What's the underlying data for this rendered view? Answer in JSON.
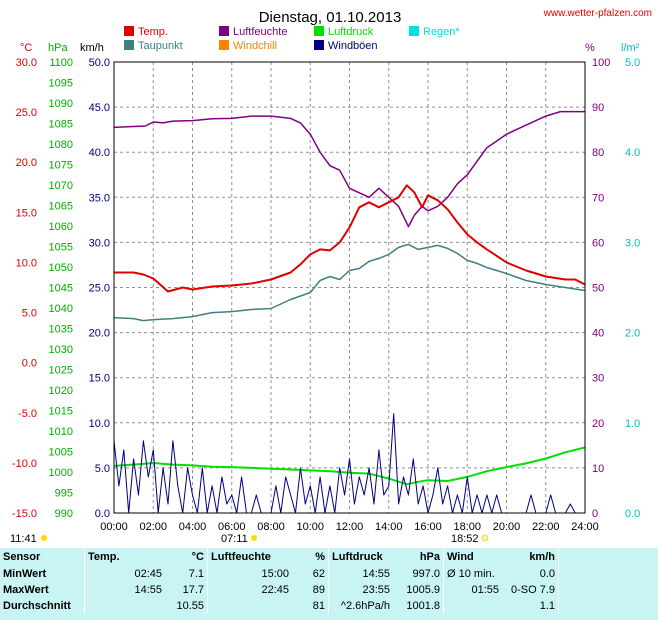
{
  "chart_data": {
    "type": "line",
    "title": "Dienstag, 01.10.2013",
    "source": "www.wetter-pfalzen.com",
    "x_range_hours": [
      0,
      24
    ],
    "x_ticks": [
      "00:00",
      "02:00",
      "04:00",
      "06:00",
      "08:00",
      "10:00",
      "12:00",
      "14:00",
      "16:00",
      "18:00",
      "20:00",
      "22:00",
      "24:00"
    ],
    "sunrise": "07:11",
    "sunset": "18:52",
    "daylength": "11:41",
    "axes": {
      "temp": {
        "unit": "°C",
        "min": -15,
        "max": 30,
        "ticks": [
          "30.0",
          "25.0",
          "20.0",
          "15.0",
          "10.0",
          "5.0",
          "0.0",
          "-5.0",
          "-10.0",
          "-15.0"
        ],
        "color": "#e00000"
      },
      "pressure": {
        "unit": "hPa",
        "min": 990,
        "max": 1100,
        "ticks": [
          "1100",
          "1095",
          "1090",
          "1085",
          "1080",
          "1075",
          "1070",
          "1065",
          "1060",
          "1055",
          "1050",
          "1045",
          "1040",
          "1035",
          "1030",
          "1025",
          "1020",
          "1015",
          "1010",
          "1005",
          "1000",
          "995",
          "990"
        ],
        "color": "#00b000"
      },
      "wind": {
        "unit": "km/h",
        "min": 0,
        "max": 50,
        "ticks": [
          "50.0",
          "45.0",
          "40.0",
          "35.0",
          "30.0",
          "25.0",
          "20.0",
          "15.0",
          "10.0",
          "5.0",
          "0.0"
        ],
        "color": "#000080"
      },
      "humidity": {
        "unit": "%",
        "min": 0,
        "max": 100,
        "ticks": [
          "100",
          "90",
          "80",
          "70",
          "60",
          "50",
          "40",
          "30",
          "20",
          "10",
          "0"
        ],
        "color": "#800080"
      },
      "rain": {
        "unit": "l/m²",
        "min": 0,
        "max": 5,
        "ticks": [
          "5.0",
          "4.0",
          "3.0",
          "2.0",
          "1.0",
          "0.0"
        ],
        "color": "#00c0c0"
      }
    },
    "legend": [
      {
        "name": "Temp.",
        "color": "#e00000"
      },
      {
        "name": "Luftfeuchte",
        "color": "#800080"
      },
      {
        "name": "Luftdruck",
        "color": "#00e000"
      },
      {
        "name": "Regen*",
        "color": "#00e0e0"
      },
      {
        "name": "Taupunkt",
        "color": "#408080"
      },
      {
        "name": "Windchill",
        "color": "#ff8000"
      },
      {
        "name": "Windböen",
        "color": "#000080"
      }
    ],
    "series": [
      {
        "name": "Temp.",
        "axis": "temp",
        "color": "#e00000",
        "points": [
          [
            0,
            9
          ],
          [
            1,
            9
          ],
          [
            1.5,
            8.8
          ],
          [
            2,
            8.4
          ],
          [
            2.75,
            7.1
          ],
          [
            3.5,
            7.5
          ],
          [
            4,
            7.3
          ],
          [
            5,
            7.6
          ],
          [
            6,
            7.7
          ],
          [
            7,
            7.9
          ],
          [
            8,
            8.3
          ],
          [
            9,
            9
          ],
          [
            9.5,
            9.8
          ],
          [
            10,
            10.8
          ],
          [
            10.5,
            11.3
          ],
          [
            11,
            11.2
          ],
          [
            11.5,
            12
          ],
          [
            12,
            13.5
          ],
          [
            12.5,
            15.5
          ],
          [
            13,
            16
          ],
          [
            13.5,
            15.5
          ],
          [
            14,
            16
          ],
          [
            14.5,
            16.5
          ],
          [
            14.92,
            17.7
          ],
          [
            15.3,
            17
          ],
          [
            15.7,
            15.5
          ],
          [
            16,
            16.7
          ],
          [
            16.5,
            16.2
          ],
          [
            17,
            15.3
          ],
          [
            17.5,
            14
          ],
          [
            18,
            12.8
          ],
          [
            18.5,
            12
          ],
          [
            19,
            11.3
          ],
          [
            20,
            10
          ],
          [
            21,
            9.2
          ],
          [
            22,
            8.6
          ],
          [
            23,
            8.3
          ],
          [
            23.5,
            8.3
          ],
          [
            24,
            7.8
          ]
        ]
      },
      {
        "name": "Taupunkt",
        "axis": "temp",
        "color": "#408080",
        "points": [
          [
            0,
            4.5
          ],
          [
            1,
            4.4
          ],
          [
            1.5,
            4.2
          ],
          [
            2,
            4.3
          ],
          [
            3,
            4.4
          ],
          [
            4,
            4.6
          ],
          [
            5,
            5.0
          ],
          [
            6,
            5.1
          ],
          [
            7,
            5.3
          ],
          [
            8,
            5.4
          ],
          [
            9,
            6.3
          ],
          [
            10,
            7.0
          ],
          [
            10.5,
            8.2
          ],
          [
            11,
            8.6
          ],
          [
            11.5,
            8.3
          ],
          [
            12,
            9.2
          ],
          [
            12.5,
            9.4
          ],
          [
            13,
            10.1
          ],
          [
            13.5,
            10.4
          ],
          [
            14,
            10.8
          ],
          [
            14.5,
            11.5
          ],
          [
            15,
            11.8
          ],
          [
            15.5,
            11.3
          ],
          [
            16,
            11.5
          ],
          [
            16.5,
            11.7
          ],
          [
            17,
            11.4
          ],
          [
            17.5,
            10.9
          ],
          [
            18,
            10.2
          ],
          [
            18.5,
            9.9
          ],
          [
            19,
            9.5
          ],
          [
            20,
            8.9
          ],
          [
            21,
            8.2
          ],
          [
            22,
            7.8
          ],
          [
            23,
            7.5
          ],
          [
            24,
            7.2
          ]
        ]
      },
      {
        "name": "Luftfeuchte",
        "axis": "humidity",
        "color": "#800080",
        "points": [
          [
            0,
            85.5
          ],
          [
            1,
            85.7
          ],
          [
            1.6,
            85.8
          ],
          [
            2,
            86.7
          ],
          [
            2.5,
            86.5
          ],
          [
            3,
            86.9
          ],
          [
            4,
            87
          ],
          [
            5,
            87.4
          ],
          [
            6,
            87.5
          ],
          [
            7,
            88
          ],
          [
            8,
            88
          ],
          [
            9,
            87.5
          ],
          [
            9.5,
            86.5
          ],
          [
            10,
            84
          ],
          [
            10.5,
            80
          ],
          [
            11,
            77
          ],
          [
            11.5,
            76
          ],
          [
            12,
            72
          ],
          [
            12.5,
            71
          ],
          [
            13,
            70
          ],
          [
            13.5,
            72
          ],
          [
            14,
            70
          ],
          [
            14.5,
            68
          ],
          [
            15,
            63.5
          ],
          [
            15.3,
            66
          ],
          [
            15.7,
            68
          ],
          [
            16,
            67
          ],
          [
            16.5,
            68
          ],
          [
            17,
            70
          ],
          [
            17.5,
            73
          ],
          [
            18,
            75
          ],
          [
            18.5,
            78
          ],
          [
            19,
            81
          ],
          [
            20,
            84
          ],
          [
            21,
            86
          ],
          [
            22,
            88
          ],
          [
            22.75,
            89
          ],
          [
            23.5,
            89
          ],
          [
            24,
            89
          ]
        ]
      },
      {
        "name": "Luftdruck",
        "axis": "pressure",
        "color": "#00e000",
        "points": [
          [
            0,
            1001.5
          ],
          [
            1,
            1001.8
          ],
          [
            2,
            1002.2
          ],
          [
            3,
            1001.8
          ],
          [
            4,
            1001.6
          ],
          [
            5,
            1001.3
          ],
          [
            6,
            1001.2
          ],
          [
            7,
            1001.0
          ],
          [
            8,
            1000.8
          ],
          [
            9,
            1000.6
          ],
          [
            10,
            1000.4
          ],
          [
            11,
            1000.2
          ],
          [
            12,
            999.8
          ],
          [
            13,
            999.6
          ],
          [
            14,
            998.4
          ],
          [
            14.92,
            997.0
          ],
          [
            15.5,
            997.6
          ],
          [
            16,
            998.0
          ],
          [
            17,
            997.8
          ],
          [
            18,
            998.8
          ],
          [
            19,
            1000.2
          ],
          [
            20,
            1001.2
          ],
          [
            21,
            1002.1
          ],
          [
            22,
            1003.3
          ],
          [
            23,
            1004.8
          ],
          [
            23.92,
            1005.9
          ],
          [
            24,
            1005.9
          ]
        ]
      },
      {
        "name": "Windböen",
        "axis": "wind",
        "color": "#000080",
        "points": [
          [
            0,
            8
          ],
          [
            0.25,
            3
          ],
          [
            0.5,
            7
          ],
          [
            0.75,
            0
          ],
          [
            1,
            6
          ],
          [
            1.25,
            2
          ],
          [
            1.5,
            8
          ],
          [
            1.75,
            4
          ],
          [
            2,
            7
          ],
          [
            2.25,
            0
          ],
          [
            2.5,
            5
          ],
          [
            2.75,
            1
          ],
          [
            3,
            8
          ],
          [
            3.25,
            3
          ],
          [
            3.5,
            0
          ],
          [
            3.75,
            5
          ],
          [
            4,
            2
          ],
          [
            4.25,
            0
          ],
          [
            4.5,
            5
          ],
          [
            4.75,
            0
          ],
          [
            5,
            3
          ],
          [
            5.25,
            0
          ],
          [
            5.5,
            4
          ],
          [
            5.75,
            1
          ],
          [
            6,
            2
          ],
          [
            6.25,
            0
          ],
          [
            6.5,
            4
          ],
          [
            6.75,
            0
          ],
          [
            7,
            0
          ],
          [
            7.25,
            2
          ],
          [
            7.5,
            0
          ],
          [
            8,
            0
          ],
          [
            8.25,
            3
          ],
          [
            8.5,
            0
          ],
          [
            8.75,
            4
          ],
          [
            9,
            2
          ],
          [
            9.25,
            0
          ],
          [
            9.5,
            5
          ],
          [
            9.75,
            1
          ],
          [
            10,
            3
          ],
          [
            10.25,
            0
          ],
          [
            10.5,
            4
          ],
          [
            10.75,
            0
          ],
          [
            11,
            3
          ],
          [
            11.25,
            0
          ],
          [
            11.5,
            5
          ],
          [
            11.75,
            2
          ],
          [
            12,
            6
          ],
          [
            12.25,
            1
          ],
          [
            12.5,
            4
          ],
          [
            12.75,
            2
          ],
          [
            13,
            5
          ],
          [
            13.25,
            1
          ],
          [
            13.5,
            7
          ],
          [
            13.75,
            2
          ],
          [
            14,
            3
          ],
          [
            14.25,
            11
          ],
          [
            14.5,
            1
          ],
          [
            14.75,
            4
          ],
          [
            15,
            2
          ],
          [
            15.25,
            6
          ],
          [
            15.5,
            1
          ],
          [
            15.75,
            3
          ],
          [
            16,
            0
          ],
          [
            16.25,
            2
          ],
          [
            16.5,
            5
          ],
          [
            16.75,
            1
          ],
          [
            17,
            3
          ],
          [
            17.25,
            0
          ],
          [
            17.5,
            2
          ],
          [
            17.75,
            0
          ],
          [
            18,
            4
          ],
          [
            18.25,
            0
          ],
          [
            18.5,
            2
          ],
          [
            18.75,
            0
          ],
          [
            19,
            2
          ],
          [
            19.25,
            0
          ],
          [
            19.5,
            2
          ],
          [
            19.75,
            0
          ],
          [
            20,
            0
          ],
          [
            21,
            0
          ],
          [
            21.25,
            2
          ],
          [
            21.5,
            0
          ],
          [
            22,
            0
          ],
          [
            22.25,
            2
          ],
          [
            22.5,
            0
          ],
          [
            23,
            0
          ],
          [
            23.25,
            1
          ],
          [
            23.5,
            0
          ],
          [
            24,
            0
          ]
        ]
      }
    ]
  },
  "stats_table": {
    "headers": {
      "sensor": "Sensor",
      "temp": "Temp.",
      "temp_unit": "°C",
      "hum": "Luftfeuchte",
      "hum_unit": "%",
      "press": "Luftdruck",
      "press_unit": "hPa",
      "wind": "Wind",
      "wind_unit": "km/h"
    },
    "rows": [
      {
        "label": "MinWert",
        "temp_time": "02:45",
        "temp_val": "7.1",
        "hum_time": "15:00",
        "hum_val": "62",
        "press_time": "14:55",
        "press_val": "997.0",
        "wind_time": "Ø 10 min.",
        "wind_val": "0.0"
      },
      {
        "label": "MaxWert",
        "temp_time": "14:55",
        "temp_val": "17.7",
        "hum_time": "22:45",
        "hum_val": "89",
        "press_time": "23:55",
        "press_val": "1005.9",
        "wind_time": "01:55",
        "wind_val": "0-SO 7.9"
      },
      {
        "label": "Durchschnitt",
        "temp_time": "",
        "temp_val": "10.55",
        "hum_time": "",
        "hum_val": "81",
        "press_time": "^2.6hPa/h",
        "press_val": "1001.8",
        "wind_time": "",
        "wind_val": "1.1"
      }
    ]
  }
}
